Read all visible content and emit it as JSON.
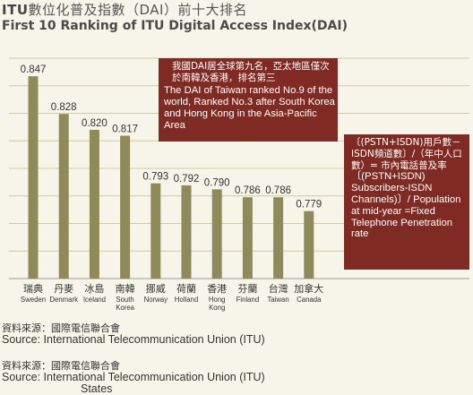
{
  "header": {
    "title_zh_prefix": "ITU",
    "title_zh_rest": "數位化普及指數（DAI）前十大排名",
    "title_en": "First 10 Ranking of ITU Digital Access Index(DAI)"
  },
  "callouts": {
    "taiwan": {
      "zh": "我國DAI居全球第九名，亞太地區僅次於南韓及香港，排名第三",
      "en": "The DAI of Taiwan ranked No.9 of the world, Ranked No.3 after South Korea and Hong Kong in the Asia-Pacific Area"
    },
    "definition": {
      "zh": "〔(PSTN+ISDN)用戶數－ISDN頻道數〕/（年中人口數）= 市內電話普及率",
      "en": "〔(PSTN+ISDN) Subscribers-ISDN Channels)〕/ Population at mid-year =Fixed Telephone Penetration rate"
    }
  },
  "sources": [
    {
      "zh": "資料來源：國際電信聯合會",
      "en": "Source: International Telecommunication Union (ITU)",
      "en_extra": ""
    },
    {
      "zh": "資料來源：國際電信聯合會",
      "en": "Source: International Telecommunication Union (ITU)",
      "en_extra": "States"
    }
  ],
  "chart_data": {
    "type": "bar",
    "title": "First 10 Ranking of ITU Digital Access Index(DAI)",
    "categories": [
      {
        "zh": "瑞典",
        "en": "Sweden"
      },
      {
        "zh": "丹麥",
        "en": "Denmark"
      },
      {
        "zh": "冰島",
        "en": "Iceland"
      },
      {
        "zh": "南韓",
        "en": "South Korea"
      },
      {
        "zh": "挪威",
        "en": "Norway"
      },
      {
        "zh": "荷蘭",
        "en": "Holland"
      },
      {
        "zh": "香港",
        "en": "Hong Kong"
      },
      {
        "zh": "芬蘭",
        "en": "Finland"
      },
      {
        "zh": "台灣",
        "en": "Taiwan"
      },
      {
        "zh": "加拿大",
        "en": "Canada"
      }
    ],
    "values": [
      0.847,
      0.828,
      0.82,
      0.817,
      0.793,
      0.792,
      0.79,
      0.786,
      0.786,
      0.779
    ],
    "value_labels": [
      "0.847",
      "0.828",
      "0.820",
      "0.817",
      "0.793",
      "0.792",
      "0.790",
      "0.786",
      "0.786",
      "0.779"
    ],
    "ylim": [
      0.745,
      0.857
    ],
    "grid": true,
    "bar_color": "#8f8a5a",
    "grid_color": "#cfcaa8"
  }
}
